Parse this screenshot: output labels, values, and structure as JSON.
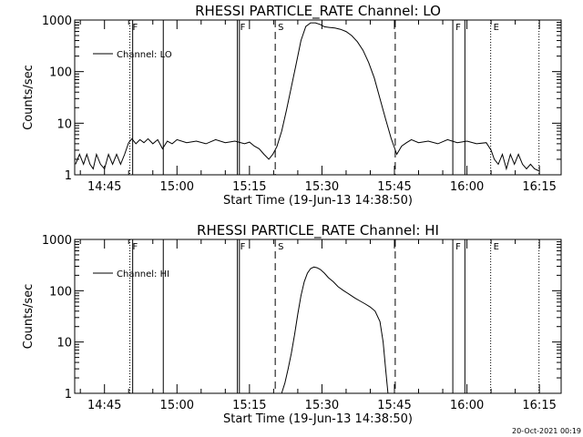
{
  "footer": {
    "date_stamp": "20-Oct-2021 00:19"
  },
  "chart_data": [
    {
      "type": "line",
      "title": "RHESSI PARTICLE_RATE Channel: LO",
      "xlabel": "Start Time (19-Jun-13 14:38:50)",
      "ylabel": "Counts/sec",
      "yscale": "log",
      "ylim": [
        1,
        1000
      ],
      "xlim": [
        "14:38:50",
        "16:19:30"
      ],
      "xticks": [
        "14:45",
        "15:00",
        "15:15",
        "15:30",
        "15:45",
        "16:00",
        "16:15"
      ],
      "yticks": [
        "1",
        "10",
        "100",
        "1000"
      ],
      "legend": {
        "entries": [
          "Channel: LO"
        ],
        "position": "top-left"
      },
      "grid": false,
      "event_markers": [
        {
          "time": "14:50:15",
          "style": "dotted",
          "label": "F"
        },
        {
          "time": "14:50:50",
          "style": "solid",
          "label": ""
        },
        {
          "time": "14:57:10",
          "style": "solid",
          "label": ""
        },
        {
          "time": "15:12:30",
          "style": "solid",
          "label": "F"
        },
        {
          "time": "15:12:55",
          "style": "solid",
          "label": ""
        },
        {
          "time": "15:20:20",
          "style": "dashed",
          "label": "S"
        },
        {
          "time": "15:45:10",
          "style": "dashed",
          "label": ""
        },
        {
          "time": "15:57:05",
          "style": "solid",
          "label": "F"
        },
        {
          "time": "15:59:35",
          "style": "solid",
          "label": ""
        },
        {
          "time": "16:04:55",
          "style": "dotted",
          "label": "E"
        },
        {
          "time": "16:14:55",
          "style": "dotted",
          "label": ""
        }
      ],
      "series": [
        {
          "name": "Channel: LO",
          "x": [
            "14:39:00",
            "14:39:50",
            "14:40:40",
            "14:41:20",
            "14:42:00",
            "14:42:40",
            "14:43:20",
            "14:44:10",
            "14:45:00",
            "14:45:50",
            "14:46:40",
            "14:47:30",
            "14:48:20",
            "14:49:10",
            "14:50:00",
            "14:50:40",
            "14:51:30",
            "14:52:20",
            "14:53:10",
            "14:54:00",
            "14:55:00",
            "14:56:00",
            "14:57:00",
            "14:58:00",
            "14:59:00",
            "15:00:00",
            "15:02:00",
            "15:04:00",
            "15:06:00",
            "15:08:00",
            "15:10:00",
            "15:12:00",
            "15:14:00",
            "15:15:00",
            "15:16:00",
            "15:17:00",
            "15:18:00",
            "15:19:00",
            "15:19:50",
            "15:20:40",
            "15:21:40",
            "15:22:40",
            "15:23:40",
            "15:24:40",
            "15:25:40",
            "15:26:40",
            "15:27:40",
            "15:28:40",
            "15:29:40",
            "15:30:30",
            "15:31:30",
            "15:32:40",
            "15:33:50",
            "15:35:00",
            "15:36:10",
            "15:37:20",
            "15:38:30",
            "15:39:40",
            "15:40:50",
            "15:42:00",
            "15:43:10",
            "15:44:20",
            "15:45:30",
            "15:46:30",
            "15:47:30",
            "15:48:30",
            "15:50:00",
            "15:52:00",
            "15:54:00",
            "15:56:00",
            "15:58:00",
            "16:00:00",
            "16:02:00",
            "16:04:00",
            "16:05:00",
            "16:05:40",
            "16:06:30",
            "16:07:20",
            "16:08:10",
            "16:09:00",
            "16:09:50",
            "16:10:40",
            "16:11:30",
            "16:12:20",
            "16:13:10",
            "16:14:00",
            "16:14:50"
          ],
          "y": [
            1.6,
            2.5,
            1.6,
            2.5,
            1.6,
            1.3,
            2.5,
            1.6,
            1.3,
            2.5,
            1.6,
            2.5,
            1.6,
            2.5,
            4.2,
            5.0,
            4.0,
            4.8,
            4.2,
            5.0,
            4.0,
            4.8,
            3.2,
            4.5,
            4.0,
            4.8,
            4.2,
            4.5,
            4.0,
            4.8,
            4.2,
            4.5,
            4.0,
            4.3,
            3.6,
            3.2,
            2.5,
            2.0,
            2.5,
            3.5,
            7,
            18,
            50,
            140,
            400,
            750,
            880,
            880,
            820,
            740,
            720,
            700,
            660,
            600,
            500,
            380,
            260,
            150,
            75,
            30,
            12,
            5,
            2.5,
            3.6,
            4.2,
            4.8,
            4.2,
            4.5,
            4.0,
            4.8,
            4.2,
            4.5,
            4.0,
            4.2,
            3.0,
            2.0,
            1.6,
            2.5,
            1.3,
            2.5,
            1.6,
            2.5,
            1.6,
            1.3,
            1.6,
            1.3,
            1.2
          ]
        }
      ]
    },
    {
      "type": "line",
      "title": "RHESSI PARTICLE_RATE Channel: HI",
      "xlabel": "Start Time (19-Jun-13 14:38:50)",
      "ylabel": "Counts/sec",
      "yscale": "log",
      "ylim": [
        1,
        1000
      ],
      "xlim": [
        "14:38:50",
        "16:19:30"
      ],
      "xticks": [
        "14:45",
        "15:00",
        "15:15",
        "15:30",
        "15:45",
        "16:00",
        "16:15"
      ],
      "yticks": [
        "1",
        "10",
        "100",
        "1000"
      ],
      "legend": {
        "entries": [
          "Channel: HI"
        ],
        "position": "top-left"
      },
      "grid": false,
      "event_markers": [
        {
          "time": "14:50:15",
          "style": "dotted",
          "label": "F"
        },
        {
          "time": "14:50:50",
          "style": "solid",
          "label": ""
        },
        {
          "time": "14:57:10",
          "style": "solid",
          "label": ""
        },
        {
          "time": "15:12:30",
          "style": "solid",
          "label": "F"
        },
        {
          "time": "15:12:55",
          "style": "solid",
          "label": ""
        },
        {
          "time": "15:20:20",
          "style": "dashed",
          "label": "S"
        },
        {
          "time": "15:45:10",
          "style": "dashed",
          "label": ""
        },
        {
          "time": "15:57:05",
          "style": "solid",
          "label": "F"
        },
        {
          "time": "15:59:35",
          "style": "solid",
          "label": ""
        },
        {
          "time": "16:04:55",
          "style": "dotted",
          "label": "E"
        },
        {
          "time": "16:14:55",
          "style": "dotted",
          "label": ""
        }
      ],
      "series": [
        {
          "name": "Channel: HI",
          "x": [
            "15:21:40",
            "15:22:20",
            "15:23:00",
            "15:23:40",
            "15:24:20",
            "15:25:00",
            "15:25:40",
            "15:26:20",
            "15:27:00",
            "15:27:40",
            "15:28:20",
            "15:29:00",
            "15:29:40",
            "15:30:30",
            "15:31:20",
            "15:32:20",
            "15:33:20",
            "15:34:30",
            "15:35:40",
            "15:36:50",
            "15:38:00",
            "15:39:00",
            "15:40:00",
            "15:41:00",
            "15:42:00",
            "15:42:40",
            "15:43:10",
            "15:43:40"
          ],
          "y": [
            1.0,
            1.6,
            3,
            6,
            14,
            35,
            80,
            150,
            220,
            270,
            290,
            280,
            260,
            220,
            180,
            150,
            120,
            100,
            85,
            72,
            62,
            55,
            48,
            40,
            25,
            10,
            3,
            1.0
          ]
        }
      ]
    }
  ]
}
